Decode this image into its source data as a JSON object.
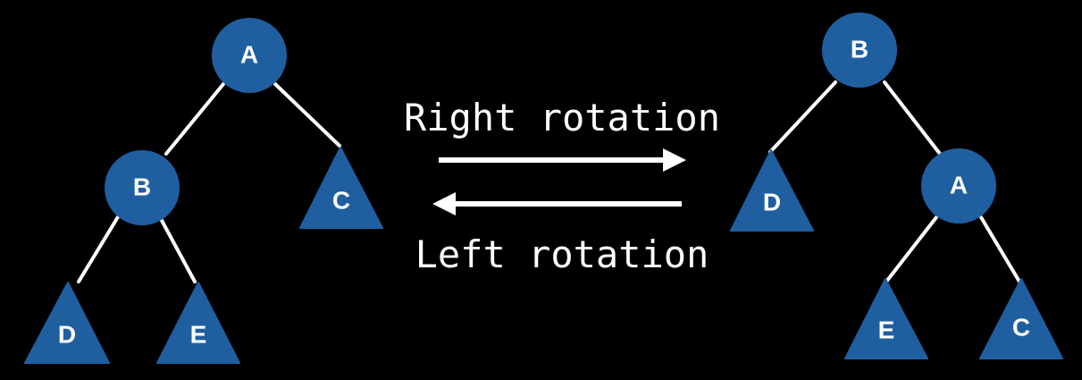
{
  "colors": {
    "background": "#000000",
    "node_fill": "#1f5fa0",
    "edge": "#ffffff",
    "text": "#ffffff"
  },
  "left_tree": {
    "root": "A",
    "left_child": "B",
    "right_subtree": "C",
    "left_left_subtree": "D",
    "left_right_subtree": "E"
  },
  "right_tree": {
    "root": "B",
    "left_subtree": "D",
    "right_child": "A",
    "right_left_subtree": "E",
    "right_right_subtree": "C"
  },
  "operations": {
    "right_rotation": "Right rotation",
    "left_rotation": "Left rotation"
  }
}
